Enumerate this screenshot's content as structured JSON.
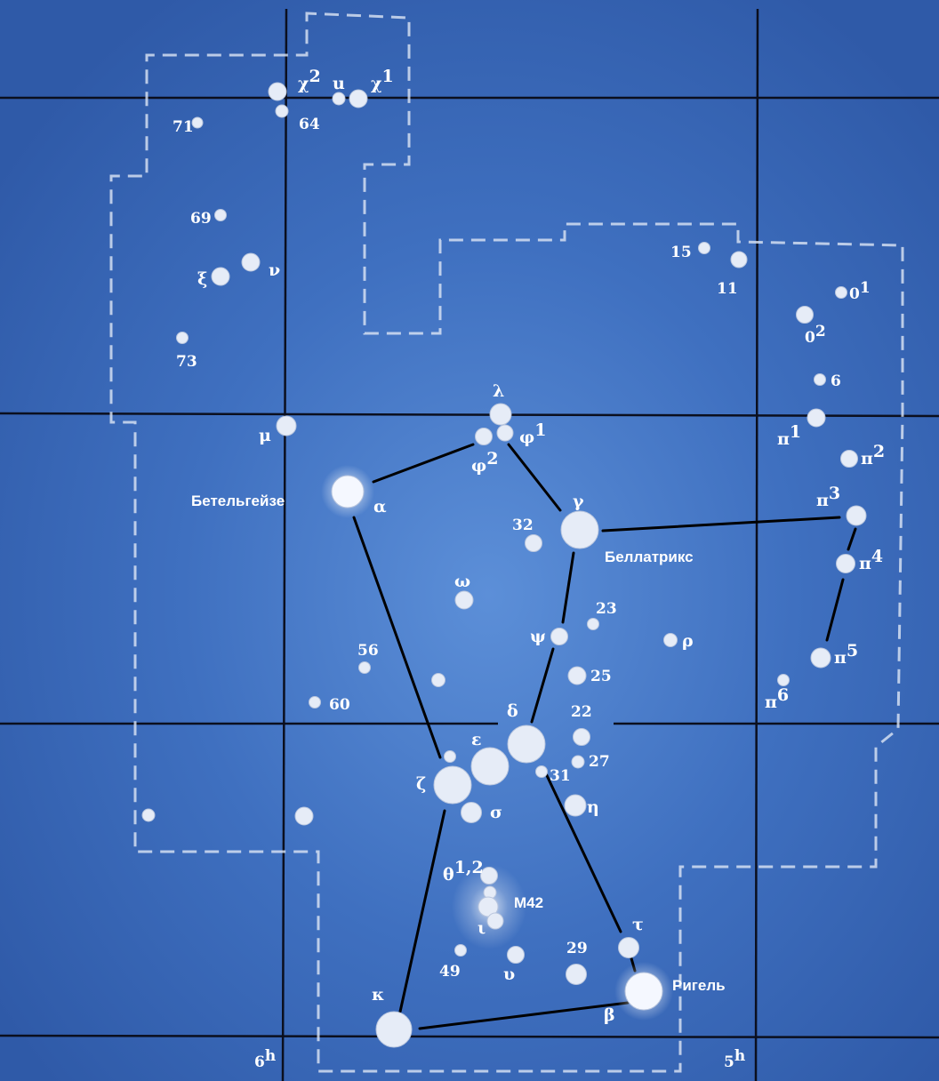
{
  "colors": {
    "background": "#3a69b8",
    "grid_line": "#0b0f1e",
    "boundary": "#dde6f5",
    "stick_line": "#000000",
    "star": "#e6ecf7",
    "label": "#ffffff"
  },
  "constellation": "Orion",
  "ra_labels": [
    {
      "main": "6",
      "sup": "h"
    },
    {
      "main": "5",
      "sup": "h"
    }
  ],
  "named_stars": {
    "betelgeuse": "Бетельгейзе",
    "bellatrix": "Беллатрикс",
    "rigel": "Ригель"
  },
  "nebula": "M42",
  "stars": [
    {
      "id": "chi2",
      "greek": "χ",
      "sup": "2"
    },
    {
      "id": "64",
      "label": "64"
    },
    {
      "id": "u",
      "label": "u"
    },
    {
      "id": "chi1",
      "greek": "χ",
      "sup": "1"
    },
    {
      "id": "71",
      "label": "71"
    },
    {
      "id": "69",
      "label": "69"
    },
    {
      "id": "nu",
      "greek": "ν"
    },
    {
      "id": "xi",
      "greek": "ξ"
    },
    {
      "id": "73",
      "label": "73"
    },
    {
      "id": "15",
      "label": "15"
    },
    {
      "id": "11",
      "label": "11"
    },
    {
      "id": "o1",
      "label": "0",
      "sup": "1"
    },
    {
      "id": "o2",
      "label": "0",
      "sup": "2"
    },
    {
      "id": "6",
      "label": "6"
    },
    {
      "id": "pi1",
      "greek": "π",
      "sup": "1"
    },
    {
      "id": "pi2",
      "greek": "π",
      "sup": "2"
    },
    {
      "id": "pi3",
      "greek": "π",
      "sup": "3"
    },
    {
      "id": "pi4",
      "greek": "π",
      "sup": "4"
    },
    {
      "id": "pi5",
      "greek": "π",
      "sup": "5"
    },
    {
      "id": "pi6",
      "greek": "π",
      "sup": "6"
    },
    {
      "id": "lambda",
      "greek": "λ"
    },
    {
      "id": "phi1",
      "greek": "φ",
      "sup": "1"
    },
    {
      "id": "phi2",
      "greek": "φ",
      "sup": "2"
    },
    {
      "id": "mu",
      "greek": "μ"
    },
    {
      "id": "alpha",
      "greek": "α"
    },
    {
      "id": "gamma",
      "greek": "γ"
    },
    {
      "id": "32",
      "label": "32"
    },
    {
      "id": "omega",
      "greek": "ω"
    },
    {
      "id": "23",
      "label": "23"
    },
    {
      "id": "psi",
      "greek": "ψ"
    },
    {
      "id": "rho",
      "greek": "ρ"
    },
    {
      "id": "56",
      "label": "56"
    },
    {
      "id": "60",
      "label": "60"
    },
    {
      "id": "25",
      "label": "25"
    },
    {
      "id": "delta",
      "greek": "δ"
    },
    {
      "id": "22",
      "label": "22"
    },
    {
      "id": "epsilon",
      "greek": "ε"
    },
    {
      "id": "27",
      "label": "27"
    },
    {
      "id": "31",
      "label": "31"
    },
    {
      "id": "zeta",
      "greek": "ζ"
    },
    {
      "id": "eta",
      "greek": "η"
    },
    {
      "id": "sigma",
      "greek": "σ"
    },
    {
      "id": "theta",
      "greek": "θ",
      "sup": "1,2"
    },
    {
      "id": "iota",
      "greek": "ι"
    },
    {
      "id": "49",
      "label": "49"
    },
    {
      "id": "upsilon",
      "greek": "υ"
    },
    {
      "id": "29",
      "label": "29"
    },
    {
      "id": "tau",
      "greek": "τ"
    },
    {
      "id": "beta",
      "greek": "β"
    },
    {
      "id": "kappa",
      "greek": "κ"
    }
  ]
}
